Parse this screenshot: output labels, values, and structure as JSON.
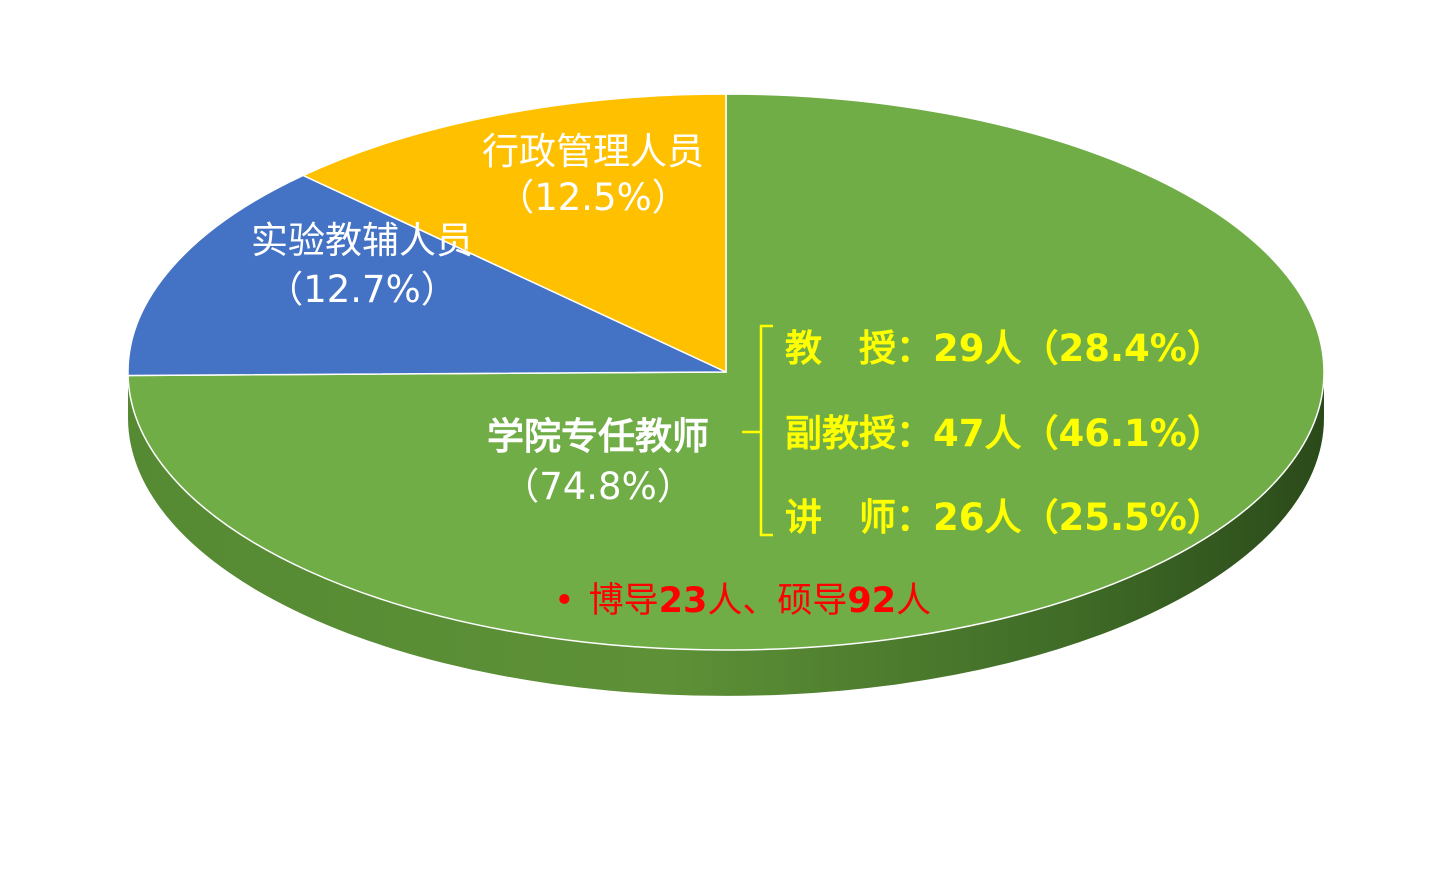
{
  "chart_data": {
    "type": "pie",
    "style": "3d",
    "slices": [
      {
        "key": "faculty",
        "name": "学院专任教师",
        "pct_label": "（74.8%）",
        "value": 74.8,
        "color": "#70AD47"
      },
      {
        "key": "lab",
        "name": "实验教辅人员",
        "pct_label": "（12.7%）",
        "value": 12.7,
        "color": "#4472C4"
      },
      {
        "key": "admin",
        "name": "行政管理人员",
        "pct_label": "（12.5%）",
        "value": 12.5,
        "color": "#FFC000"
      }
    ],
    "annotations": {
      "breakdown": [
        {
          "title": "教　授：",
          "count": "29人",
          "pct": "（28.4%）"
        },
        {
          "title": "副教授：",
          "count": "47人",
          "pct": "（46.1%）"
        },
        {
          "title": "讲　师：",
          "count": "26人",
          "pct": "（25.5%）"
        }
      ],
      "note": {
        "bullet": "•",
        "parts": [
          "博导",
          "23",
          "人、硕导",
          "92",
          "人"
        ]
      }
    },
    "colors": {
      "side_light": "#5E9137",
      "side_dark": "#2B4A1A",
      "breakdown_text": "#FFFF00",
      "note_text": "#FF0000",
      "label_text": "#FFFFFF"
    }
  }
}
